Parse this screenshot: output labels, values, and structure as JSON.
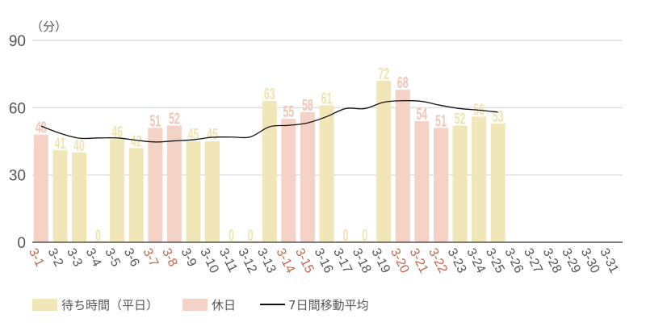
{
  "chart_data": {
    "type": "bar",
    "title": "",
    "unit_label": "（分）",
    "xlabel": "",
    "ylabel": "（分）",
    "ylim": [
      0,
      90
    ],
    "yticks": [
      0,
      30,
      60,
      90
    ],
    "grid": true,
    "legend_position": "bottom-left",
    "categories": [
      "3-1",
      "3-2",
      "3-3",
      "3-4",
      "3-5",
      "3-6",
      "3-7",
      "3-8",
      "3-9",
      "3-10",
      "3-11",
      "3-12",
      "3-13",
      "3-14",
      "3-15",
      "3-16",
      "3-17",
      "3-18",
      "3-19",
      "3-20",
      "3-21",
      "3-22",
      "3-23",
      "3-24",
      "3-25",
      "3-26",
      "3-27",
      "3-28",
      "3-29",
      "3-30",
      "3-31"
    ],
    "day_type": [
      "holiday",
      "weekday",
      "weekday",
      "weekday",
      "weekday",
      "weekday",
      "holiday",
      "holiday",
      "weekday",
      "weekday",
      "weekday",
      "weekday",
      "weekday",
      "holiday",
      "holiday",
      "weekday",
      "weekday",
      "weekday",
      "weekday",
      "holiday",
      "holiday",
      "holiday",
      "weekday",
      "weekday",
      "weekday",
      "weekday",
      "weekday",
      "weekday",
      "weekday",
      "weekday",
      "weekday"
    ],
    "values": [
      48,
      41,
      40,
      0,
      46,
      42,
      51,
      52,
      45,
      45,
      0,
      0,
      63,
      55,
      58,
      61,
      0,
      0,
      72,
      68,
      54,
      51,
      52,
      56,
      53,
      null,
      null,
      null,
      null,
      null,
      null
    ],
    "series": [
      {
        "name": "待ち時間（平日）",
        "type": "bar",
        "color": "#f1e6b8"
      },
      {
        "name": "休日",
        "type": "bar",
        "color": "#f5d2c6"
      },
      {
        "name": "7日間移動平均",
        "type": "line",
        "color": "#111111",
        "values": [
          51.8,
          48.6,
          46.4,
          46.5,
          46.5,
          45.5,
          44.7,
          45.2,
          45.7,
          46.8,
          46.9,
          47.0,
          51.5,
          52.1,
          53.2,
          56.0,
          59.6,
          59.6,
          62.4,
          63.1,
          62.8,
          61.0,
          59.6,
          58.9,
          58.0,
          null,
          null,
          null,
          null,
          null,
          null
        ]
      }
    ],
    "colors": {
      "weekday_bar": "#f1e6b8",
      "holiday_bar": "#f5d2c6",
      "weekday_label": "#f0e3b0",
      "holiday_label": "#f2c6b6",
      "weekday_tick": "#555555",
      "holiday_tick": "#c8664a",
      "grid": "#d8d8d8",
      "axis": "#555555"
    }
  },
  "legend": {
    "items": [
      {
        "label": "待ち時間（平日）",
        "kind": "bar",
        "color": "#f1e6b8"
      },
      {
        "label": "休日",
        "kind": "bar",
        "color": "#f5d2c6"
      },
      {
        "label": "7日間移動平均",
        "kind": "line",
        "color": "#111111"
      }
    ]
  }
}
